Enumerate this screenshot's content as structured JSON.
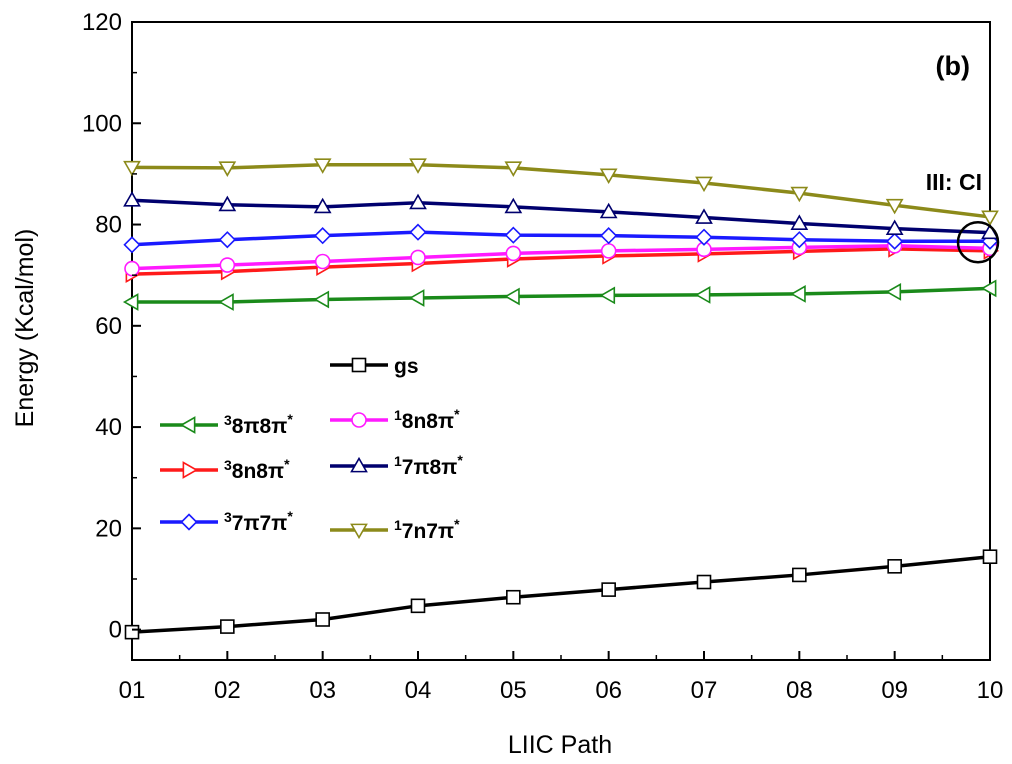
{
  "chart_data": {
    "type": "line",
    "panel_label": "(b)",
    "xlabel": "LIIC Path",
    "ylabel": "Energy (Kcal/mol)",
    "categories": [
      "01",
      "02",
      "03",
      "04",
      "05",
      "06",
      "07",
      "08",
      "09",
      "10"
    ],
    "ylim": [
      -6,
      120
    ],
    "yticks": [
      0,
      20,
      40,
      60,
      80,
      100,
      120
    ],
    "grid": false,
    "legend_position": "lower-left",
    "series": [
      {
        "key": "gs",
        "sup": "",
        "label": "gs",
        "color": "#000000",
        "marker": "square",
        "values": [
          -0.5,
          0.6,
          2.0,
          4.7,
          6.4,
          7.9,
          9.4,
          10.8,
          12.5,
          14.4
        ]
      },
      {
        "key": "s1",
        "sup": "3",
        "label": "8π8π",
        "color": "#1a8a1a",
        "marker": "triangle-left",
        "values": [
          64.7,
          64.7,
          65.2,
          65.5,
          65.8,
          66.0,
          66.1,
          66.3,
          66.7,
          67.4
        ]
      },
      {
        "key": "s2",
        "sup": "3",
        "label": "8n8π",
        "color": "#ff1a1a",
        "marker": "triangle-right",
        "values": [
          70.2,
          70.7,
          71.6,
          72.3,
          73.2,
          73.8,
          74.2,
          74.7,
          75.2,
          74.8
        ]
      },
      {
        "key": "s3",
        "sup": "3",
        "label": "7π7π",
        "color": "#1a1aff",
        "marker": "diamond",
        "values": [
          76.0,
          77.0,
          77.8,
          78.5,
          77.9,
          77.8,
          77.5,
          77.0,
          76.7,
          76.7
        ]
      },
      {
        "key": "s4",
        "sup": "1",
        "label": "8n8π",
        "color": "#ff1aff",
        "marker": "circle",
        "values": [
          71.3,
          72.0,
          72.7,
          73.5,
          74.3,
          74.8,
          75.1,
          75.5,
          75.8,
          75.3
        ]
      },
      {
        "key": "s5",
        "sup": "1",
        "label": "7π8π",
        "color": "#00006e",
        "marker": "triangle-up",
        "values": [
          84.8,
          83.9,
          83.5,
          84.3,
          83.5,
          82.5,
          81.4,
          80.2,
          79.2,
          78.4
        ]
      },
      {
        "key": "s6",
        "sup": "1",
        "label": "7n7π",
        "color": "#8c8a1a",
        "marker": "triangle-down",
        "values": [
          91.3,
          91.2,
          91.8,
          91.8,
          91.2,
          89.8,
          88.2,
          86.2,
          83.8,
          81.5
        ]
      }
    ],
    "annotation": {
      "text": "III: CI",
      "at_category": "10"
    }
  }
}
